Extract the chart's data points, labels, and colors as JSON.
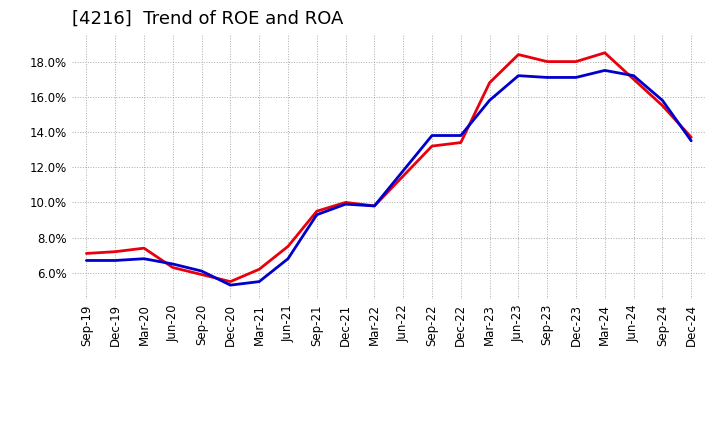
{
  "title": "[4216]  Trend of ROE and ROA",
  "x_labels": [
    "Sep-19",
    "Dec-19",
    "Mar-20",
    "Jun-20",
    "Sep-20",
    "Dec-20",
    "Mar-21",
    "Jun-21",
    "Sep-21",
    "Dec-21",
    "Mar-22",
    "Jun-22",
    "Sep-22",
    "Dec-22",
    "Mar-23",
    "Jun-23",
    "Sep-23",
    "Dec-23",
    "Mar-24",
    "Jun-24",
    "Sep-24",
    "Dec-24"
  ],
  "roe": [
    7.1,
    7.2,
    7.4,
    6.3,
    5.9,
    5.5,
    6.2,
    7.5,
    9.5,
    10.0,
    9.8,
    11.5,
    13.2,
    13.4,
    16.8,
    18.4,
    18.0,
    18.0,
    18.5,
    17.0,
    15.5,
    13.7
  ],
  "roa": [
    6.7,
    6.7,
    6.8,
    6.5,
    6.1,
    5.3,
    5.5,
    6.8,
    9.3,
    9.9,
    9.8,
    11.8,
    13.8,
    13.8,
    15.8,
    17.2,
    17.1,
    17.1,
    17.5,
    17.2,
    15.8,
    13.5
  ],
  "roe_color": "#e8000d",
  "roa_color": "#0000cc",
  "background_color": "#ffffff",
  "plot_bg_color": "#ffffff",
  "grid_color": "#aaaaaa",
  "ylim": [
    4.5,
    19.5
  ],
  "yticks": [
    6.0,
    8.0,
    10.0,
    12.0,
    14.0,
    16.0,
    18.0
  ],
  "line_width": 2.0,
  "title_fontsize": 13,
  "axis_fontsize": 8.5
}
